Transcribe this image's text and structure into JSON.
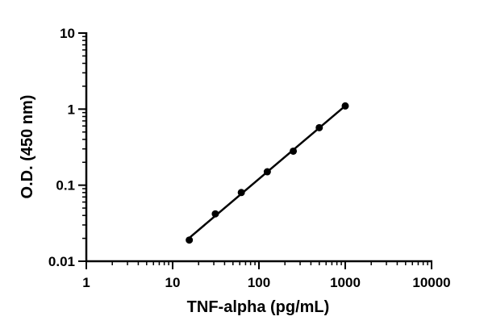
{
  "chart_data": {
    "type": "line",
    "title": "",
    "xlabel": "TNF-alpha (pg/mL)",
    "ylabel": "O.D. (450 nm)",
    "x_scale": "log",
    "y_scale": "log",
    "xlim": [
      1,
      10000
    ],
    "ylim": [
      0.01,
      10
    ],
    "x_ticks": [
      {
        "value": 1,
        "label": "1"
      },
      {
        "value": 10,
        "label": "10"
      },
      {
        "value": 100,
        "label": "100"
      },
      {
        "value": 1000,
        "label": "1000"
      },
      {
        "value": 10000,
        "label": "10000"
      }
    ],
    "y_ticks": [
      {
        "value": 0.01,
        "label": "0.01"
      },
      {
        "value": 0.1,
        "label": "0.1"
      },
      {
        "value": 1,
        "label": "1"
      },
      {
        "value": 10,
        "label": "10"
      }
    ],
    "grid": false,
    "legend": "none",
    "series": [
      {
        "points": [
          {
            "x": 15.6,
            "y": 0.019
          },
          {
            "x": 31.25,
            "y": 0.042
          },
          {
            "x": 62.5,
            "y": 0.08
          },
          {
            "x": 125,
            "y": 0.15
          },
          {
            "x": 250,
            "y": 0.28
          },
          {
            "x": 500,
            "y": 0.57
          },
          {
            "x": 1000,
            "y": 1.1
          }
        ],
        "fit_line": true
      }
    ],
    "colors": {
      "marks": "#000000",
      "axes": "#000000"
    }
  }
}
